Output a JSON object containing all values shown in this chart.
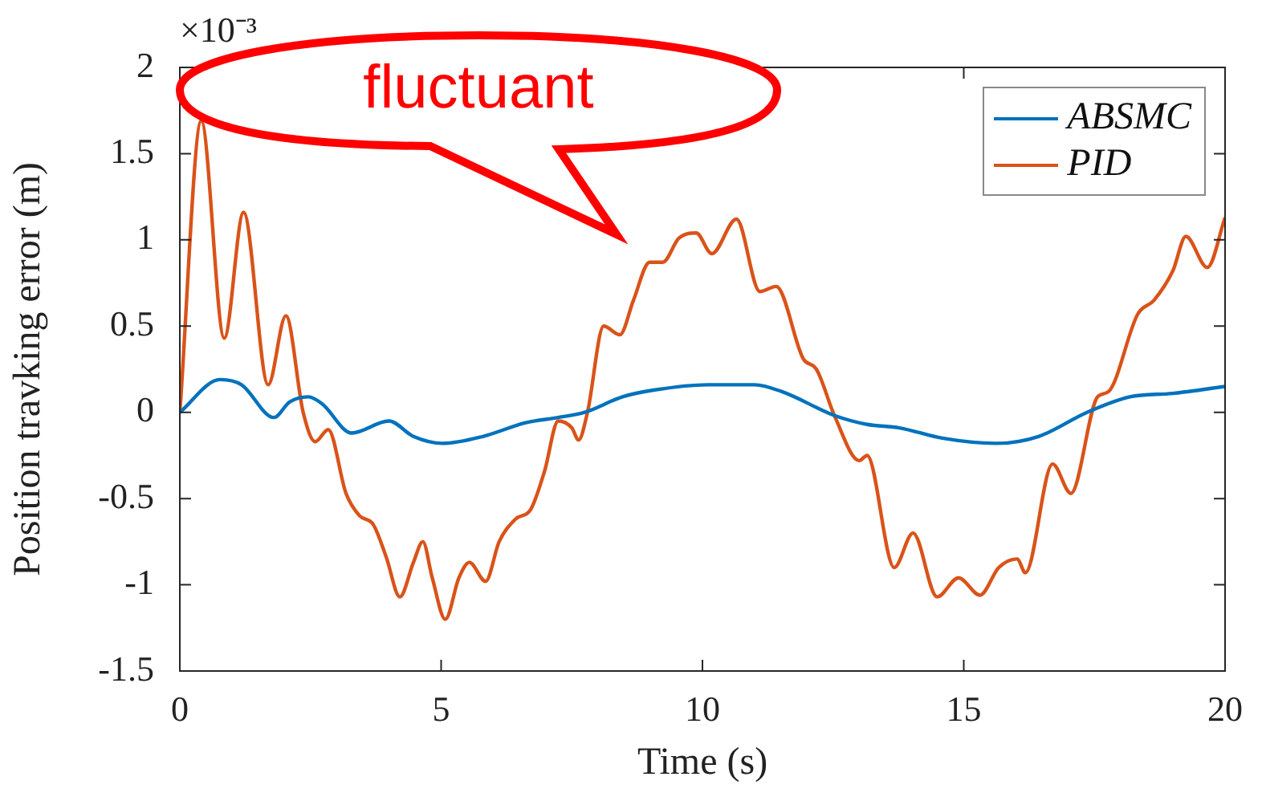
{
  "chart_data": {
    "type": "line",
    "xlabel": "Time (s)",
    "ylabel": "Position travking error (m)",
    "annotations": [
      "×10⁻³",
      "fluctuant"
    ],
    "xlim": [
      0,
      20
    ],
    "xticks": [
      0,
      5,
      10,
      15,
      20
    ],
    "ylim": [
      -1.5,
      2
    ],
    "yticks": [
      -1.5,
      -1,
      -0.5,
      0,
      0.5,
      1,
      1.5,
      2
    ],
    "legend": "top right",
    "marker": "none",
    "line_style": "solid",
    "series": [
      {
        "name": "ABSMC",
        "color": "#0072bd",
        "x": [
          0,
          0.77,
          1.18,
          1.8,
          2.1,
          2.46,
          2.72,
          3.29,
          4.0,
          4.47,
          5.03,
          5.8,
          6.62,
          7.24,
          7.75,
          8.47,
          9.09,
          10.1,
          11.0,
          11.52,
          12.54,
          13.15,
          13.77,
          14.59,
          15.61,
          16.43,
          17.36,
          18.18,
          19.0,
          20.0
        ],
        "values": [
          0,
          0.19,
          0.16,
          -0.03,
          0.06,
          0.09,
          0.05,
          -0.12,
          -0.05,
          -0.14,
          -0.18,
          -0.14,
          -0.06,
          -0.03,
          0,
          0.09,
          0.13,
          0.16,
          0.16,
          0.12,
          -0.02,
          -0.07,
          -0.09,
          -0.15,
          -0.18,
          -0.14,
          0,
          0.09,
          0.11,
          0.15
        ]
      },
      {
        "name": "PID",
        "color": "#d95319",
        "x": [
          0,
          0.41,
          0.85,
          1.22,
          1.69,
          2.03,
          2.36,
          2.59,
          2.84,
          3.18,
          3.44,
          3.7,
          3.95,
          4.21,
          4.47,
          4.65,
          4.83,
          5.08,
          5.34,
          5.54,
          5.85,
          6.11,
          6.42,
          6.72,
          6.98,
          7.24,
          7.5,
          7.63,
          7.8,
          8.11,
          8.42,
          8.68,
          8.99,
          9.24,
          9.55,
          9.88,
          10.18,
          10.65,
          11.1,
          11.41,
          11.93,
          12.18,
          12.54,
          13.0,
          13.15,
          13.67,
          14.03,
          14.49,
          14.9,
          15.31,
          15.67,
          16.02,
          16.18,
          16.7,
          17.05,
          17.56,
          17.77,
          18.33,
          18.64,
          19.0,
          19.25,
          19.66,
          20.0
        ],
        "values": [
          0,
          1.69,
          0.43,
          1.16,
          0.16,
          0.56,
          0,
          -0.17,
          -0.1,
          -0.47,
          -0.6,
          -0.65,
          -0.84,
          -1.07,
          -0.87,
          -0.75,
          -0.96,
          -1.2,
          -0.96,
          -0.87,
          -0.98,
          -0.75,
          -0.62,
          -0.56,
          -0.34,
          -0.05,
          -0.09,
          -0.16,
          0,
          0.5,
          0.45,
          0.65,
          0.87,
          0.87,
          1.01,
          1.04,
          0.92,
          1.12,
          0.7,
          0.73,
          0.31,
          0.25,
          -0.03,
          -0.28,
          -0.25,
          -0.9,
          -0.7,
          -1.07,
          -0.96,
          -1.06,
          -0.9,
          -0.85,
          -0.93,
          -0.3,
          -0.47,
          0.09,
          0.12,
          0.57,
          0.65,
          0.82,
          1.02,
          0.84,
          1.13
        ]
      }
    ]
  }
}
